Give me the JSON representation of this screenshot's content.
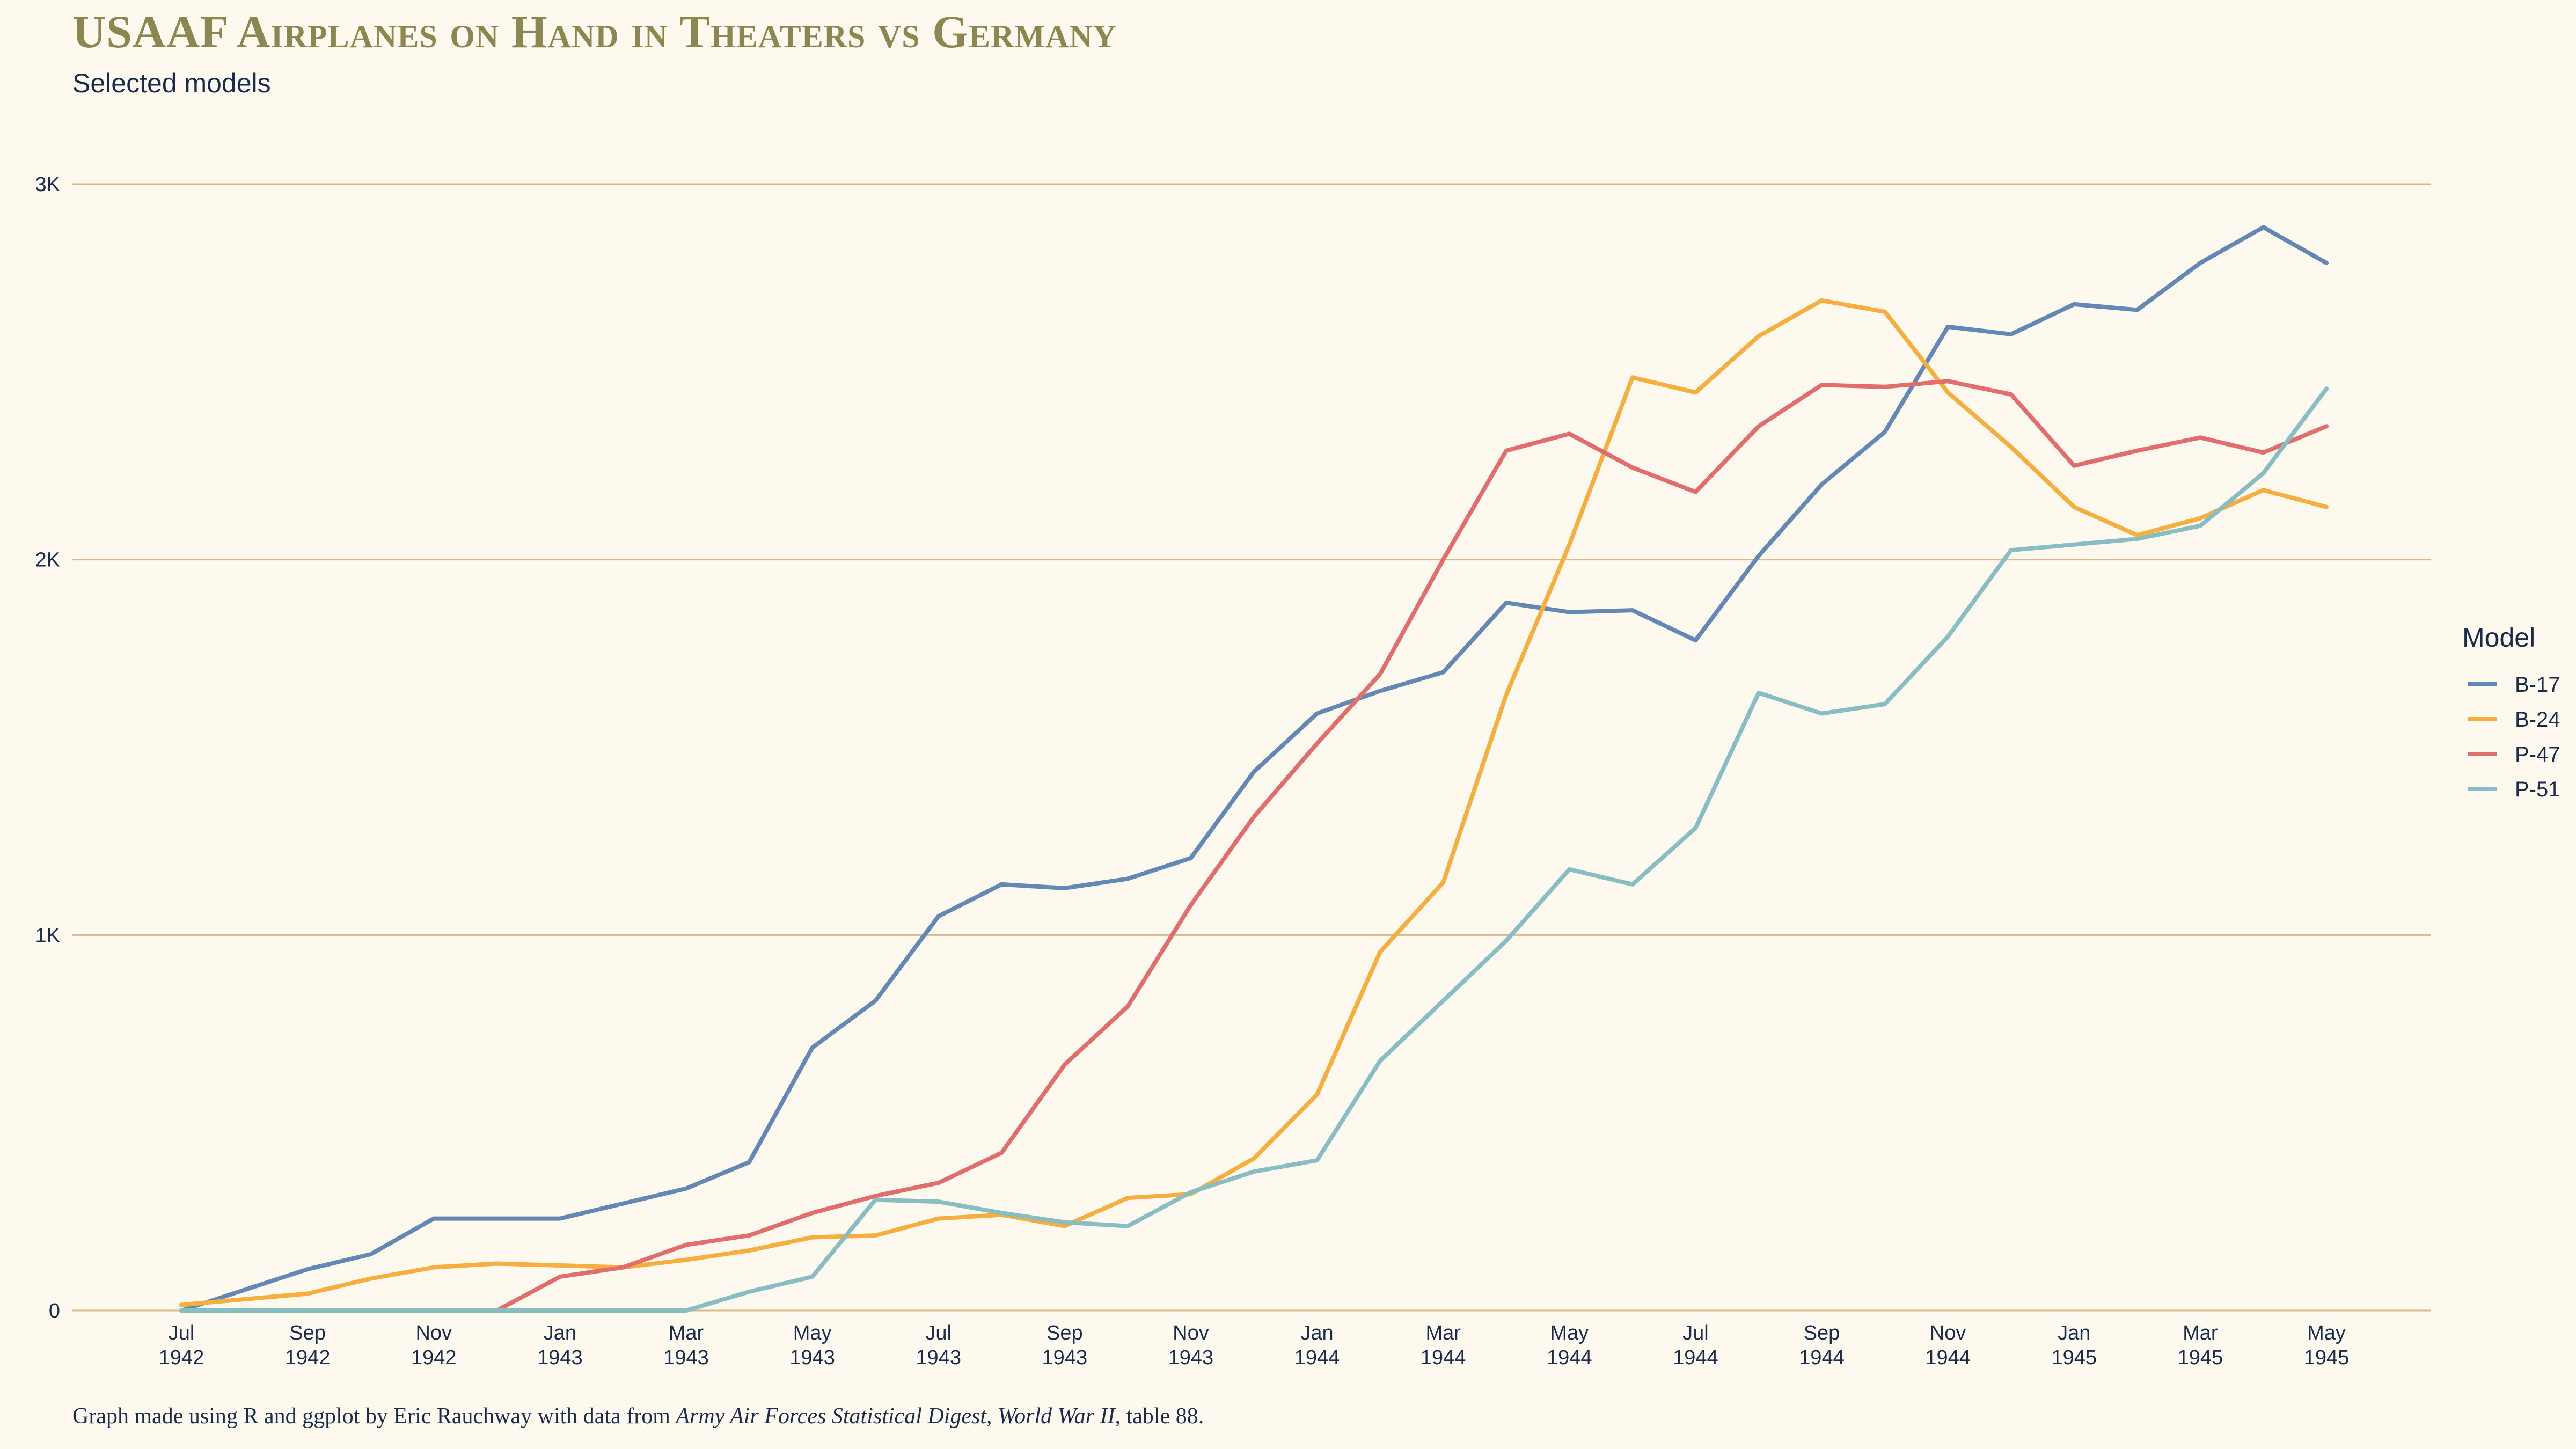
{
  "chart_data": {
    "type": "line",
    "title": "USAAF Airplanes on Hand in Theaters vs Germany",
    "subtitle": "Selected models",
    "xlabel": "",
    "ylabel": "",
    "ylim": [
      0,
      3000
    ],
    "yticks": [
      {
        "value": 0,
        "label": "0"
      },
      {
        "value": 1000,
        "label": "1K"
      },
      {
        "value": 2000,
        "label": "2K"
      },
      {
        "value": 3000,
        "label": "3K"
      }
    ],
    "x": [
      "Jul 1942",
      "Aug 1942",
      "Sep 1942",
      "Oct 1942",
      "Nov 1942",
      "Dec 1942",
      "Jan 1943",
      "Feb 1943",
      "Mar 1943",
      "Apr 1943",
      "May 1943",
      "Jun 1943",
      "Jul 1943",
      "Aug 1943",
      "Sep 1943",
      "Oct 1943",
      "Nov 1943",
      "Dec 1943",
      "Jan 1944",
      "Feb 1944",
      "Mar 1944",
      "Apr 1944",
      "May 1944",
      "Jun 1944",
      "Jul 1944",
      "Aug 1944",
      "Sep 1944",
      "Oct 1944",
      "Nov 1944",
      "Dec 1944",
      "Jan 1945",
      "Feb 1945",
      "Mar 1945",
      "Apr 1945",
      "May 1945"
    ],
    "xticks": [
      {
        "index": 0,
        "month": "Jul",
        "year": "1942"
      },
      {
        "index": 2,
        "month": "Sep",
        "year": "1942"
      },
      {
        "index": 4,
        "month": "Nov",
        "year": "1942"
      },
      {
        "index": 6,
        "month": "Jan",
        "year": "1943"
      },
      {
        "index": 8,
        "month": "Mar",
        "year": "1943"
      },
      {
        "index": 10,
        "month": "May",
        "year": "1943"
      },
      {
        "index": 12,
        "month": "Jul",
        "year": "1943"
      },
      {
        "index": 14,
        "month": "Sep",
        "year": "1943"
      },
      {
        "index": 16,
        "month": "Nov",
        "year": "1943"
      },
      {
        "index": 18,
        "month": "Jan",
        "year": "1944"
      },
      {
        "index": 20,
        "month": "Mar",
        "year": "1944"
      },
      {
        "index": 22,
        "month": "May",
        "year": "1944"
      },
      {
        "index": 24,
        "month": "Jul",
        "year": "1944"
      },
      {
        "index": 26,
        "month": "Sep",
        "year": "1944"
      },
      {
        "index": 28,
        "month": "Nov",
        "year": "1944"
      },
      {
        "index": 30,
        "month": "Jan",
        "year": "1945"
      },
      {
        "index": 32,
        "month": "Mar",
        "year": "1945"
      },
      {
        "index": 34,
        "month": "May",
        "year": "1945"
      }
    ],
    "grid": true,
    "legend": {
      "title": "Model",
      "position": "right"
    },
    "series": [
      {
        "name": "B-17",
        "color": "#6488b4",
        "values": [
          0,
          55,
          110,
          150,
          245,
          245,
          245,
          285,
          325,
          395,
          700,
          825,
          1050,
          1135,
          1125,
          1150,
          1205,
          1435,
          1590,
          1650,
          1700,
          1885,
          1860,
          1865,
          1785,
          2010,
          2200,
          2340,
          2620,
          2600,
          2680,
          2665,
          2790,
          2885,
          2790
        ]
      },
      {
        "name": "B-24",
        "color": "#f6ae3f",
        "values": [
          15,
          30,
          45,
          85,
          115,
          125,
          120,
          115,
          135,
          160,
          195,
          200,
          245,
          255,
          225,
          300,
          310,
          405,
          575,
          955,
          1140,
          1640,
          2040,
          2485,
          2445,
          2595,
          2690,
          2660,
          2445,
          2300,
          2140,
          2065,
          2110,
          2185,
          2140
        ]
      },
      {
        "name": "P-47",
        "color": "#e26d6d",
        "values": [
          0,
          0,
          0,
          0,
          0,
          0,
          90,
          115,
          175,
          200,
          260,
          305,
          340,
          420,
          655,
          810,
          1080,
          1315,
          1510,
          1695,
          2000,
          2290,
          2335,
          2245,
          2180,
          2355,
          2465,
          2460,
          2475,
          2440,
          2250,
          2290,
          2325,
          2285,
          2355
        ]
      },
      {
        "name": "P-51",
        "color": "#89bdc4",
        "values": [
          0,
          0,
          0,
          0,
          0,
          0,
          0,
          0,
          0,
          50,
          90,
          295,
          290,
          260,
          235,
          225,
          315,
          370,
          400,
          665,
          825,
          985,
          1175,
          1135,
          1285,
          1645,
          1590,
          1615,
          1795,
          2025,
          2040,
          2055,
          2090,
          2230,
          2455
        ]
      }
    ],
    "caption": {
      "prefix": "Graph made using R and ggplot by Eric Rauchway with data from ",
      "source": "Army Air Forces Statistical Digest, World War II",
      "suffix": ", table 88."
    }
  }
}
